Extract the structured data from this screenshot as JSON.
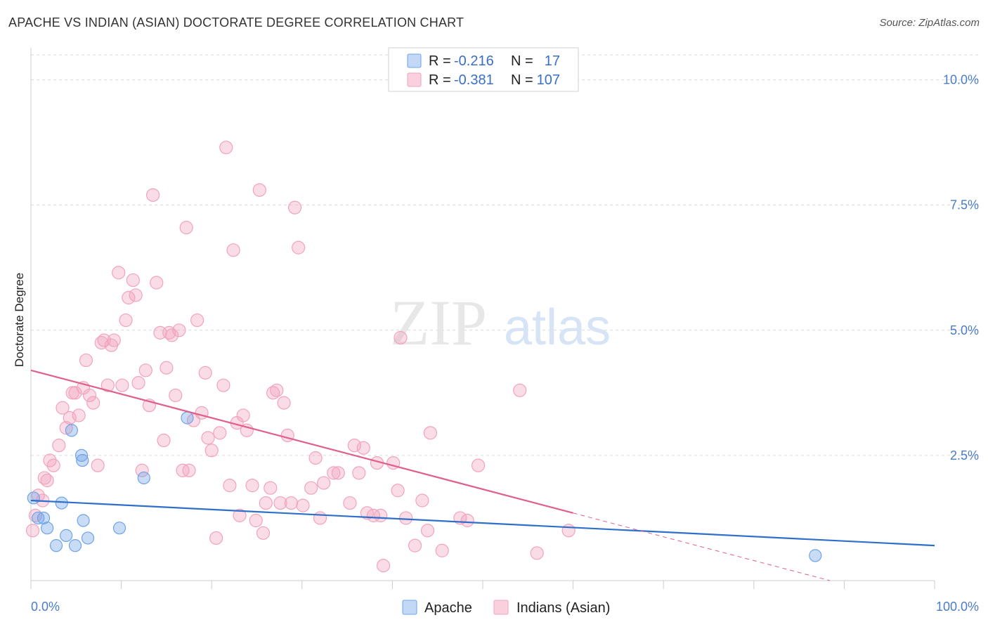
{
  "title": "APACHE VS INDIAN (ASIAN) DOCTORATE DEGREE CORRELATION CHART",
  "source": "Source: ZipAtlas.com",
  "watermark": {
    "zip": "ZIP",
    "atlas": "atlas"
  },
  "colors": {
    "apache": "#6fa3e8",
    "apache_line": "#2f6fcc",
    "indians": "#f1a3bd",
    "indians_line": "#e0608c",
    "tick": "#4a7cc9",
    "grid": "#d9d9d9"
  },
  "legend_top": {
    "rows": [
      {
        "r_label": "R =",
        "r_value": "-0.216",
        "n_label": "N =",
        "n_value": "17"
      },
      {
        "r_label": "R =",
        "r_value": "-0.381",
        "n_label": "N =",
        "n_value": "107"
      }
    ]
  },
  "legend_bottom": [
    "Apache",
    "Indians (Asian)"
  ],
  "chart_data": {
    "type": "scatter",
    "title": "APACHE VS INDIAN (ASIAN) DOCTORATE DEGREE CORRELATION CHART",
    "xlabel": "",
    "ylabel": "Doctorate Degree",
    "xlim": [
      0,
      100
    ],
    "ylim": [
      0,
      10.5
    ],
    "x_tick_labels": [
      "0.0%",
      "100.0%"
    ],
    "y_ticks": [
      2.5,
      5.0,
      7.5,
      10.0
    ],
    "y_tick_labels": [
      "2.5%",
      "5.0%",
      "7.5%",
      "10.0%"
    ],
    "grid": true,
    "legend": "top-center",
    "series": [
      {
        "name": "Apache",
        "R": -0.216,
        "N": 17,
        "trend": {
          "x": [
            0,
            100
          ],
          "y": [
            1.6,
            0.7
          ]
        },
        "points": [
          [
            0.3,
            1.65
          ],
          [
            0.8,
            1.25
          ],
          [
            1.4,
            1.25
          ],
          [
            1.8,
            1.05
          ],
          [
            2.8,
            0.7
          ],
          [
            3.4,
            1.55
          ],
          [
            3.9,
            0.9
          ],
          [
            4.9,
            0.7
          ],
          [
            5.6,
            2.5
          ],
          [
            5.7,
            2.4
          ],
          [
            5.8,
            1.2
          ],
          [
            6.3,
            0.85
          ],
          [
            4.5,
            3.0
          ],
          [
            9.8,
            1.05
          ],
          [
            12.5,
            2.05
          ],
          [
            17.3,
            3.25
          ],
          [
            86.8,
            0.5
          ]
        ]
      },
      {
        "name": "Indians (Asian)",
        "R": -0.381,
        "N": 107,
        "trend": {
          "x": [
            0,
            60
          ],
          "y": [
            4.2,
            1.35
          ]
        },
        "trend_extension": {
          "x": [
            60,
            100
          ],
          "y": [
            1.35,
            -0.55
          ]
        },
        "points": [
          [
            0.2,
            1.0
          ],
          [
            0.5,
            1.3
          ],
          [
            0.8,
            1.7
          ],
          [
            1.3,
            1.6
          ],
          [
            1.5,
            2.05
          ],
          [
            1.8,
            2.0
          ],
          [
            2.1,
            2.4
          ],
          [
            2.5,
            2.3
          ],
          [
            3.1,
            2.7
          ],
          [
            3.5,
            3.45
          ],
          [
            3.9,
            3.05
          ],
          [
            4.3,
            3.25
          ],
          [
            4.6,
            3.75
          ],
          [
            4.9,
            3.75
          ],
          [
            5.3,
            3.3
          ],
          [
            5.8,
            3.85
          ],
          [
            6.1,
            4.4
          ],
          [
            6.5,
            3.7
          ],
          [
            6.9,
            3.55
          ],
          [
            7.4,
            2.3
          ],
          [
            7.8,
            4.75
          ],
          [
            8.1,
            4.8
          ],
          [
            8.5,
            3.9
          ],
          [
            8.9,
            4.7
          ],
          [
            9.2,
            4.8
          ],
          [
            9.7,
            6.15
          ],
          [
            10.1,
            3.9
          ],
          [
            10.5,
            5.2
          ],
          [
            10.8,
            5.65
          ],
          [
            11.3,
            6.0
          ],
          [
            11.6,
            5.7
          ],
          [
            11.9,
            3.95
          ],
          [
            12.3,
            2.2
          ],
          [
            12.7,
            4.2
          ],
          [
            13.1,
            3.5
          ],
          [
            13.5,
            7.7
          ],
          [
            13.9,
            5.95
          ],
          [
            14.3,
            4.95
          ],
          [
            14.7,
            2.8
          ],
          [
            15.0,
            4.25
          ],
          [
            15.3,
            4.95
          ],
          [
            15.6,
            4.9
          ],
          [
            16.0,
            3.7
          ],
          [
            16.4,
            5.0
          ],
          [
            16.8,
            2.2
          ],
          [
            17.2,
            7.05
          ],
          [
            17.5,
            2.2
          ],
          [
            18.0,
            3.2
          ],
          [
            18.4,
            5.2
          ],
          [
            18.9,
            3.35
          ],
          [
            19.3,
            4.15
          ],
          [
            19.6,
            2.85
          ],
          [
            20.0,
            2.6
          ],
          [
            20.5,
            0.85
          ],
          [
            20.9,
            2.95
          ],
          [
            21.3,
            3.9
          ],
          [
            21.6,
            8.65
          ],
          [
            22.0,
            1.9
          ],
          [
            22.4,
            6.6
          ],
          [
            22.8,
            3.15
          ],
          [
            23.1,
            1.3
          ],
          [
            23.5,
            3.3
          ],
          [
            23.9,
            3.0
          ],
          [
            24.5,
            1.9
          ],
          [
            24.9,
            1.2
          ],
          [
            25.3,
            7.8
          ],
          [
            25.7,
            0.95
          ],
          [
            26.0,
            1.55
          ],
          [
            26.5,
            1.85
          ],
          [
            26.8,
            3.75
          ],
          [
            27.2,
            3.8
          ],
          [
            27.6,
            1.55
          ],
          [
            28.0,
            3.55
          ],
          [
            28.4,
            2.9
          ],
          [
            28.8,
            1.55
          ],
          [
            29.2,
            7.45
          ],
          [
            29.6,
            6.65
          ],
          [
            30.1,
            1.5
          ],
          [
            31.0,
            1.85
          ],
          [
            31.5,
            2.45
          ],
          [
            32.0,
            1.25
          ],
          [
            32.4,
            1.95
          ],
          [
            33.5,
            2.15
          ],
          [
            34.0,
            2.15
          ],
          [
            35.3,
            1.55
          ],
          [
            35.8,
            2.7
          ],
          [
            36.3,
            2.15
          ],
          [
            36.8,
            2.65
          ],
          [
            37.2,
            1.35
          ],
          [
            37.9,
            1.3
          ],
          [
            38.3,
            2.35
          ],
          [
            38.7,
            1.3
          ],
          [
            39.0,
            0.3
          ],
          [
            40.1,
            2.35
          ],
          [
            40.6,
            1.8
          ],
          [
            40.9,
            4.85
          ],
          [
            41.5,
            1.25
          ],
          [
            42.5,
            0.7
          ],
          [
            43.3,
            1.6
          ],
          [
            43.9,
            1.0
          ],
          [
            44.2,
            2.95
          ],
          [
            45.5,
            0.6
          ],
          [
            47.5,
            1.25
          ],
          [
            48.3,
            1.2
          ],
          [
            49.5,
            2.3
          ],
          [
            54.1,
            3.8
          ],
          [
            56.0,
            0.55
          ],
          [
            59.5,
            1.0
          ]
        ]
      }
    ]
  }
}
